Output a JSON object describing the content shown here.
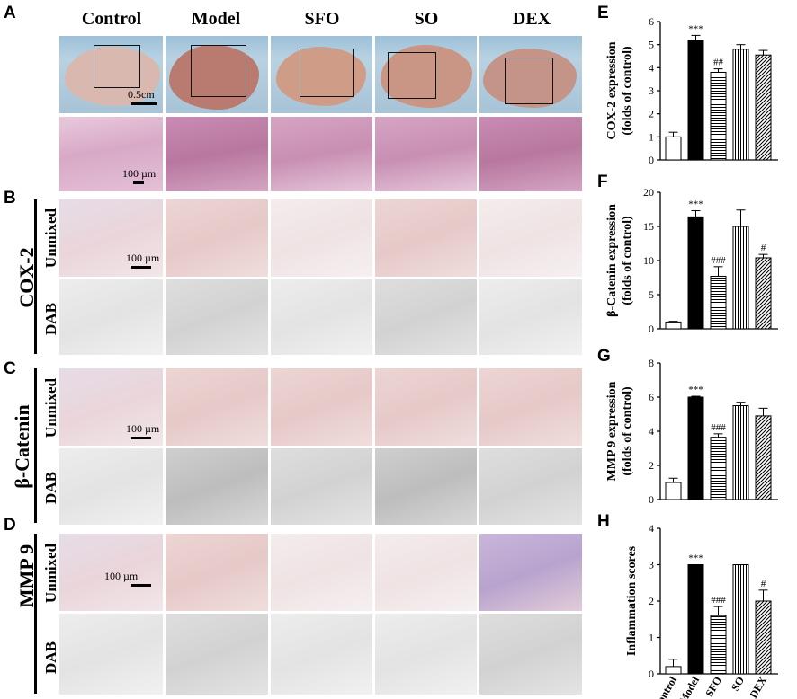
{
  "panels": {
    "A": "A",
    "B": "B",
    "C": "C",
    "D": "D",
    "E": "E",
    "F": "F",
    "G": "G",
    "H": "H"
  },
  "columns": [
    "Control",
    "Model",
    "SFO",
    "SO",
    "DEX"
  ],
  "scale_gross": "0.5cm",
  "scale_micro": "100 µm",
  "rows": {
    "cox2": "COX-2",
    "bcat": "β-Catenin",
    "mmp9": "MMP 9",
    "unmixed": "Unmixed",
    "dab": "DAB"
  },
  "chart_data": [
    {
      "type": "bar",
      "panel": "E",
      "ylabel": "COX-2 expression (folds of control)",
      "ylabel_lines": [
        "COX-2 expression",
        "(folds of control)"
      ],
      "categories": [
        "Control",
        "Model",
        "SFO",
        "SO",
        "DEX"
      ],
      "values": [
        1.0,
        5.2,
        3.8,
        4.8,
        4.55
      ],
      "errors": [
        0.2,
        0.2,
        0.15,
        0.2,
        0.2
      ],
      "annotations": [
        "",
        "***",
        "##",
        "",
        ""
      ],
      "ylim": [
        0,
        6
      ],
      "yticks": [
        0,
        1,
        2,
        3,
        4,
        5,
        6
      ]
    },
    {
      "type": "bar",
      "panel": "F",
      "ylabel": "β-Catenin expression (folds of control)",
      "ylabel_lines": [
        "β-Catenin expression",
        "(folds of control)"
      ],
      "categories": [
        "Control",
        "Model",
        "SFO",
        "SO",
        "DEX"
      ],
      "values": [
        1.0,
        16.4,
        7.7,
        15.0,
        10.4
      ],
      "errors": [
        0.1,
        0.9,
        1.4,
        2.4,
        0.5
      ],
      "annotations": [
        "",
        "***",
        "###",
        "",
        "#"
      ],
      "ylim": [
        0,
        20
      ],
      "yticks": [
        0,
        5,
        10,
        15,
        20
      ]
    },
    {
      "type": "bar",
      "panel": "G",
      "ylabel": "MMP 9 expression (folds of control)",
      "ylabel_lines": [
        "MMP 9 expression",
        "(folds of control)"
      ],
      "categories": [
        "Control",
        "Model",
        "SFO",
        "SO",
        "DEX"
      ],
      "values": [
        1.0,
        6.0,
        3.65,
        5.5,
        4.9
      ],
      "errors": [
        0.25,
        0.05,
        0.2,
        0.2,
        0.45
      ],
      "annotations": [
        "",
        "***",
        "###",
        "",
        ""
      ],
      "ylim": [
        0,
        8
      ],
      "yticks": [
        0,
        2,
        4,
        6,
        8
      ]
    },
    {
      "type": "bar",
      "panel": "H",
      "ylabel": "Inflammation scores",
      "ylabel_lines": [
        "Inflammation scores"
      ],
      "categories": [
        "Control",
        "Model",
        "SFO",
        "SO",
        "DEX"
      ],
      "values": [
        0.2,
        3.0,
        1.6,
        3.0,
        2.0
      ],
      "errors": [
        0.2,
        0.0,
        0.25,
        0.0,
        0.3
      ],
      "annotations": [
        "",
        "***",
        "###",
        "",
        "#"
      ],
      "ylim": [
        0,
        4
      ],
      "yticks": [
        0,
        1,
        2,
        3,
        4
      ],
      "show_xlabels": true
    }
  ]
}
